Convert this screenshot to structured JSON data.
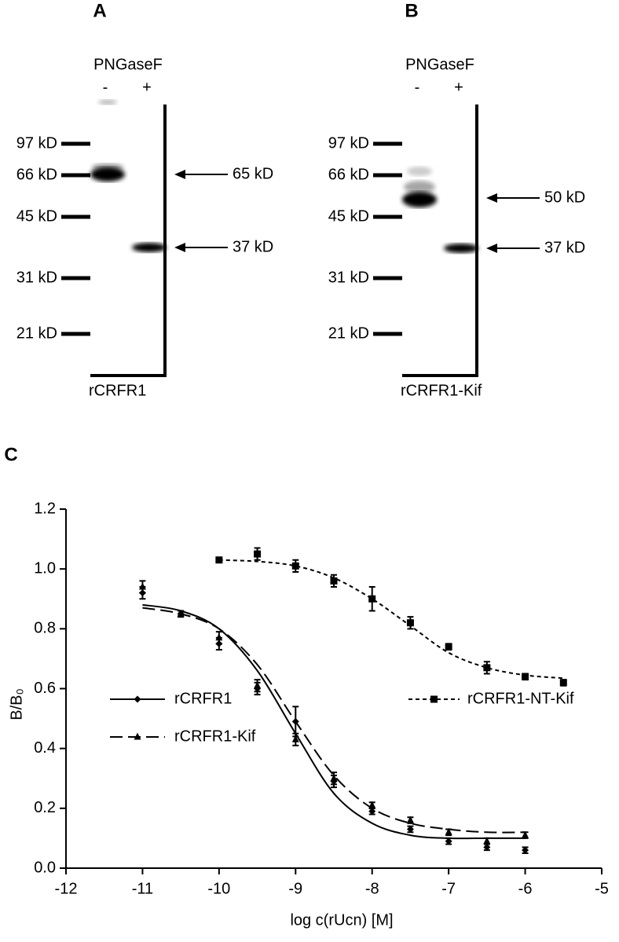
{
  "panels": [
    {
      "label": "A",
      "header": "PNGaseF",
      "lanes": [
        "-",
        "+"
      ],
      "markers": [
        "97 kD",
        "66 kD",
        "45 kD",
        "31 kD",
        "21 kD"
      ],
      "arrows": [
        "65 kD",
        "37 kD"
      ],
      "caption": "rCRFR1"
    },
    {
      "label": "B",
      "header": "PNGaseF",
      "lanes": [
        "-",
        "+"
      ],
      "markers": [
        "97 kD",
        "66 kD",
        "45 kD",
        "31 kD",
        "21 kD"
      ],
      "arrows": [
        "50 kD",
        "37 kD"
      ],
      "caption": "rCRFR1-Kif"
    }
  ],
  "chart_data": {
    "type": "line",
    "label": "C",
    "x_label": "log c(rUcn) [M]",
    "y_label": "B/B₀",
    "xlim": [
      -12,
      -5
    ],
    "xticks": [
      -12,
      -11,
      -10,
      -9,
      -8,
      -7,
      -6,
      -5
    ],
    "ylim": [
      0,
      1.2
    ],
    "yticks": [
      {
        "value": 0,
        "label": "0.0"
      },
      0.2,
      0.4,
      0.6,
      0.8,
      {
        "value": 1,
        "label": "1.0"
      },
      1.2
    ],
    "series": [
      {
        "name": "rCRFR1",
        "color": "#000000",
        "line_style": "solid",
        "marker": "diamond",
        "x": [
          -11,
          -10.5,
          -10,
          -9.5,
          -9,
          -8.5,
          -8,
          -7.5,
          -7,
          -6.5,
          -6
        ],
        "values": [
          0.92,
          0.85,
          0.75,
          0.6,
          0.49,
          0.29,
          0.19,
          0.13,
          0.09,
          0.07,
          0.06
        ],
        "errors": [
          0.02,
          0.01,
          0.02,
          0.02,
          0.05,
          0.02,
          0.01,
          0.01,
          0.01,
          0.01,
          0.01
        ],
        "fit_x": [
          -11,
          -10.5,
          -10,
          -9.5,
          -9,
          -8.5,
          -8,
          -7.5,
          -7,
          -6.5,
          -6
        ],
        "fit_values": [
          0.88,
          0.86,
          0.8,
          0.66,
          0.45,
          0.25,
          0.15,
          0.11,
          0.1,
          0.1,
          0.1
        ]
      },
      {
        "name": "rCRFR1-Kif",
        "color": "#000000",
        "line_style": "long-dash",
        "marker": "triangle",
        "x": [
          -11,
          -10.5,
          -10,
          -9.5,
          -9,
          -8.5,
          -8,
          -7.5,
          -7,
          -6.5,
          -6
        ],
        "values": [
          0.94,
          0.85,
          0.77,
          0.61,
          0.43,
          0.3,
          0.21,
          0.16,
          0.12,
          0.09,
          0.11
        ],
        "errors": [
          0.02,
          0.01,
          0.02,
          0.02,
          0.02,
          0.02,
          0.01,
          0.01,
          0.01,
          0.01,
          0.01
        ],
        "fit_x": [
          -11,
          -10.5,
          -10,
          -9.5,
          -9,
          -8.5,
          -8,
          -7.5,
          -7,
          -6.5,
          -6
        ],
        "fit_values": [
          0.87,
          0.85,
          0.8,
          0.68,
          0.49,
          0.31,
          0.2,
          0.15,
          0.13,
          0.12,
          0.12
        ]
      },
      {
        "name": "rCRFR1-NT-Kif",
        "color": "#000000",
        "line_style": "short-dash",
        "marker": "square",
        "x": [
          -10,
          -9.5,
          -9,
          -8.5,
          -8,
          -7.5,
          -7,
          -6.5,
          -6,
          -5.5
        ],
        "values": [
          1.03,
          1.05,
          1.01,
          0.96,
          0.9,
          0.82,
          0.74,
          0.67,
          0.64,
          0.62
        ],
        "errors": [
          0.005,
          0.02,
          0.02,
          0.02,
          0.04,
          0.02,
          0.01,
          0.02,
          0.01,
          0.01
        ],
        "fit_x": [
          -10,
          -9.5,
          -9,
          -8.5,
          -8,
          -7.5,
          -7,
          -6.5,
          -6,
          -5.5
        ],
        "fit_values": [
          1.03,
          1.025,
          1.01,
          0.97,
          0.9,
          0.81,
          0.72,
          0.67,
          0.645,
          0.635
        ]
      }
    ]
  }
}
